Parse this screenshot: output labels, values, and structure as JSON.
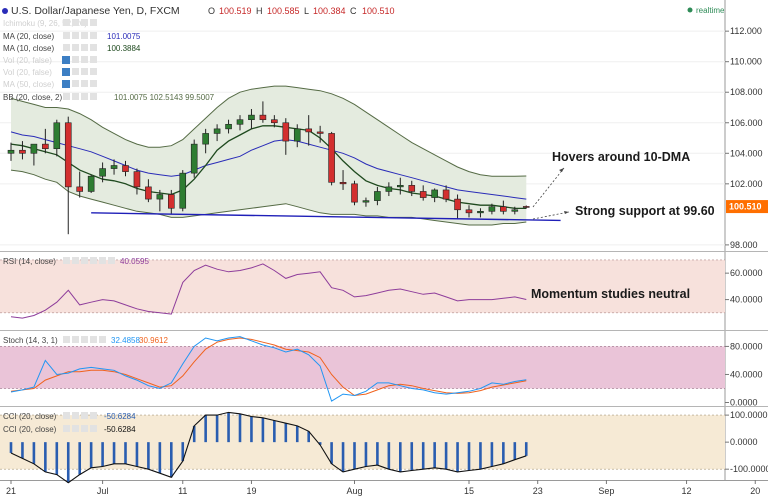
{
  "chart_data": [
    {
      "type": "candlestick",
      "title": "U.S. Dollar/Japanese Yen, D, FXCM",
      "ohlc_readout": {
        "open": "100.519",
        "high": "100.585",
        "low": "100.384",
        "close": "100.510"
      },
      "realtime_label": "realtime",
      "ylim": [
        97.6,
        112.6
      ],
      "y_ticks": [
        "112.000",
        "110.000",
        "108.000",
        "106.000",
        "104.000",
        "102.000",
        "98.000"
      ],
      "last_price": "100.510",
      "x_ticks": [
        {
          "label": "21",
          "index": 0
        },
        {
          "label": "Jul",
          "index": 8
        },
        {
          "label": "11",
          "index": 15
        },
        {
          "label": "19",
          "index": 21
        },
        {
          "label": "Aug",
          "index": 30
        },
        {
          "label": "15",
          "index": 40
        },
        {
          "label": "23",
          "index": 46
        },
        {
          "label": "Sep",
          "index": 52
        },
        {
          "label": "12",
          "index": 59
        },
        {
          "label": "20",
          "index": 65
        }
      ],
      "ohlc": [
        [
          104.0,
          104.7,
          103.5,
          104.2
        ],
        [
          104.2,
          104.8,
          103.6,
          104.0
        ],
        [
          104.0,
          104.5,
          103.2,
          104.6
        ],
        [
          104.6,
          105.6,
          104.0,
          104.3
        ],
        [
          104.3,
          106.2,
          103.8,
          106.0
        ],
        [
          106.0,
          106.4,
          98.7,
          101.8
        ],
        [
          101.8,
          102.8,
          101.1,
          101.5
        ],
        [
          101.5,
          102.6,
          101.4,
          102.5
        ],
        [
          102.5,
          103.4,
          102.1,
          103.0
        ],
        [
          103.0,
          103.6,
          102.6,
          103.2
        ],
        [
          103.2,
          103.5,
          102.5,
          102.8
        ],
        [
          102.8,
          103.0,
          101.3,
          101.8
        ],
        [
          101.8,
          102.3,
          100.8,
          101.0
        ],
        [
          101.0,
          101.6,
          100.2,
          101.3
        ],
        [
          101.3,
          101.6,
          100.0,
          100.4
        ],
        [
          100.4,
          102.9,
          100.2,
          102.7
        ],
        [
          102.7,
          104.9,
          102.4,
          104.6
        ],
        [
          104.6,
          105.6,
          104.0,
          105.3
        ],
        [
          105.3,
          105.9,
          104.8,
          105.6
        ],
        [
          105.6,
          106.2,
          105.3,
          105.9
        ],
        [
          105.9,
          106.5,
          105.5,
          106.2
        ],
        [
          106.2,
          106.9,
          105.6,
          106.5
        ],
        [
          106.5,
          107.4,
          106.0,
          106.2
        ],
        [
          106.2,
          106.5,
          105.7,
          106.0
        ],
        [
          106.0,
          106.3,
          103.9,
          104.8
        ],
        [
          104.8,
          105.9,
          104.4,
          105.6
        ],
        [
          105.6,
          106.5,
          104.5,
          105.4
        ],
        [
          105.4,
          105.8,
          104.7,
          105.3
        ],
        [
          105.3,
          105.4,
          101.9,
          102.1
        ],
        [
          102.1,
          102.9,
          101.6,
          102.0
        ],
        [
          102.0,
          102.2,
          100.6,
          100.8
        ],
        [
          100.8,
          101.1,
          100.5,
          100.9
        ],
        [
          100.9,
          101.8,
          100.6,
          101.5
        ],
        [
          101.5,
          102.1,
          101.2,
          101.8
        ],
        [
          101.8,
          102.4,
          101.3,
          101.9
        ],
        [
          101.9,
          102.2,
          101.2,
          101.5
        ],
        [
          101.5,
          101.9,
          100.9,
          101.1
        ],
        [
          101.1,
          101.7,
          100.8,
          101.6
        ],
        [
          101.6,
          101.9,
          100.8,
          101.0
        ],
        [
          101.0,
          101.3,
          99.7,
          100.3
        ],
        [
          100.3,
          100.6,
          99.8,
          100.1
        ],
        [
          100.1,
          100.4,
          99.8,
          100.2
        ],
        [
          100.2,
          100.7,
          100.0,
          100.5
        ],
        [
          100.5,
          100.9,
          100.0,
          100.2
        ],
        [
          100.2,
          100.5,
          100.0,
          100.3
        ],
        [
          100.519,
          100.585,
          100.384,
          100.51
        ]
      ],
      "indicators": {
        "ma20": {
          "label": "MA (20, close)",
          "value": "101.0075"
        },
        "ma10": {
          "label": "MA (10, close)",
          "value": "100.3884"
        },
        "bb": {
          "label": "BB (20, close, 2)",
          "values": "101.0075  102.5143  99.5007"
        },
        "faded_labels": [
          "Ichimoku (9, 26, 52, 26)",
          "Vol (20, false)",
          "Vol (20, false)",
          "MA (50, close)"
        ]
      },
      "ma10": [
        104.6,
        104.5,
        104.3,
        104.1,
        103.9,
        103.4,
        102.9,
        102.6,
        102.3,
        102.2,
        102.0,
        101.7,
        101.5,
        101.4,
        101.3,
        101.6,
        102.3,
        103.2,
        104.2,
        104.8,
        105.2,
        105.6,
        105.8,
        105.8,
        105.7,
        105.6,
        105.5,
        105.0,
        104.3,
        103.5,
        102.8,
        102.2,
        101.9,
        101.7,
        101.6,
        101.4,
        101.3,
        101.2,
        101.0,
        100.8,
        100.7,
        100.6,
        100.6,
        100.5,
        100.4,
        100.39
      ],
      "ma20": [
        105.4,
        105.2,
        105.1,
        104.9,
        104.7,
        104.5,
        104.3,
        104.1,
        103.8,
        103.5,
        103.2,
        102.9,
        102.7,
        102.6,
        102.5,
        102.6,
        102.9,
        103.2,
        103.4,
        103.6,
        103.8,
        104.2,
        104.5,
        104.8,
        104.9,
        104.8,
        104.6,
        104.4,
        104.2,
        104.0,
        103.7,
        103.3,
        103.0,
        102.8,
        102.6,
        102.4,
        102.2,
        102.0,
        101.8,
        101.6,
        101.5,
        101.4,
        101.3,
        101.2,
        101.1,
        101.0
      ],
      "bb_upper": [
        107.6,
        107.4,
        107.2,
        107.0,
        107.0,
        106.9,
        106.6,
        106.2,
        105.7,
        105.3,
        104.9,
        104.6,
        104.4,
        104.4,
        104.5,
        104.9,
        105.6,
        106.3,
        107.0,
        107.6,
        108.0,
        108.2,
        108.3,
        108.4,
        108.4,
        108.3,
        108.2,
        108.1,
        107.9,
        107.6,
        107.2,
        106.7,
        106.2,
        105.7,
        105.2,
        104.7,
        104.3,
        103.9,
        103.5,
        103.1,
        102.8,
        102.6,
        102.5,
        102.5,
        102.5,
        102.51
      ],
      "bb_lower": [
        102.9,
        102.8,
        102.6,
        102.3,
        102.1,
        101.5,
        101.2,
        101.0,
        100.8,
        100.6,
        100.4,
        100.2,
        100.1,
        100.0,
        99.8,
        99.8,
        99.9,
        100.0,
        100.1,
        100.2,
        100.3,
        100.4,
        100.5,
        100.6,
        100.7,
        100.5,
        100.3,
        100.1,
        100.0,
        100.0,
        100.0,
        99.9,
        99.9,
        99.8,
        99.8,
        99.8,
        99.7,
        99.6,
        99.5,
        99.4,
        99.3,
        99.3,
        99.3,
        99.4,
        99.4,
        99.5
      ],
      "support_line": {
        "from_index": 7,
        "to_index": 48,
        "value_start": 100.1,
        "value_end": 99.6
      },
      "annotations": [
        "Hovers around 10-DMA",
        "Strong support at 99.60"
      ]
    },
    {
      "type": "line",
      "label": "RSI (14, close)",
      "value_label": "40.0595",
      "ylim": [
        17,
        76
      ],
      "y_ticks": [
        "60.0000",
        "40.0000"
      ],
      "band": [
        30,
        70
      ],
      "note": "Momentum studies neutral",
      "values": [
        27,
        26,
        28,
        32,
        38,
        47,
        36,
        38,
        40,
        39,
        36,
        33,
        31,
        30,
        29,
        53,
        62,
        66,
        63,
        61,
        62,
        64,
        67,
        62,
        56,
        59,
        60,
        61,
        49,
        47,
        42,
        43,
        45,
        47,
        48,
        46,
        44,
        45,
        42,
        39,
        40,
        40,
        40,
        41,
        42,
        40.0595
      ]
    },
    {
      "type": "line",
      "label": "Stoch (14, 3, 1)",
      "k_value": "32.4858",
      "d_value": "30.9612",
      "ylim": [
        -5,
        102
      ],
      "y_ticks": [
        "80.0000",
        "40.0000",
        "0.0000"
      ],
      "band": [
        20,
        80
      ],
      "k": [
        15,
        18,
        22,
        60,
        40,
        42,
        48,
        50,
        48,
        46,
        38,
        32,
        24,
        20,
        28,
        55,
        80,
        92,
        88,
        92,
        94,
        88,
        82,
        78,
        72,
        76,
        68,
        52,
        2,
        12,
        10,
        16,
        28,
        28,
        24,
        20,
        18,
        14,
        12,
        14,
        16,
        20,
        28,
        26,
        30,
        32.4858
      ],
      "d": [
        16,
        18,
        20,
        32,
        38,
        44,
        44,
        46,
        46,
        44,
        40,
        34,
        28,
        22,
        24,
        38,
        58,
        76,
        86,
        90,
        92,
        90,
        86,
        82,
        76,
        74,
        72,
        64,
        40,
        22,
        10,
        12,
        18,
        24,
        26,
        24,
        20,
        17,
        14,
        13,
        14,
        17,
        22,
        25,
        28,
        30.9612
      ]
    },
    {
      "type": "bar",
      "label": "CCI (20, close)",
      "label_2": "CCI (20, close)",
      "value_label": "-50.6284",
      "value_label_2": "-50.6284",
      "ylim": [
        -140,
        130
      ],
      "y_ticks": [
        "100.0000",
        "0.0000",
        "-100.0000"
      ],
      "band": [
        -100,
        100
      ],
      "values": [
        -40,
        -60,
        -80,
        -110,
        -120,
        -150,
        -120,
        -95,
        -90,
        -80,
        -80,
        -90,
        -100,
        -115,
        -130,
        -70,
        60,
        100,
        100,
        110,
        105,
        95,
        90,
        80,
        70,
        60,
        40,
        -10,
        -80,
        -110,
        -100,
        -90,
        -85,
        -100,
        -110,
        -105,
        -100,
        -95,
        -100,
        -110,
        -105,
        -100,
        -90,
        -80,
        -65,
        -50.6284
      ]
    }
  ]
}
